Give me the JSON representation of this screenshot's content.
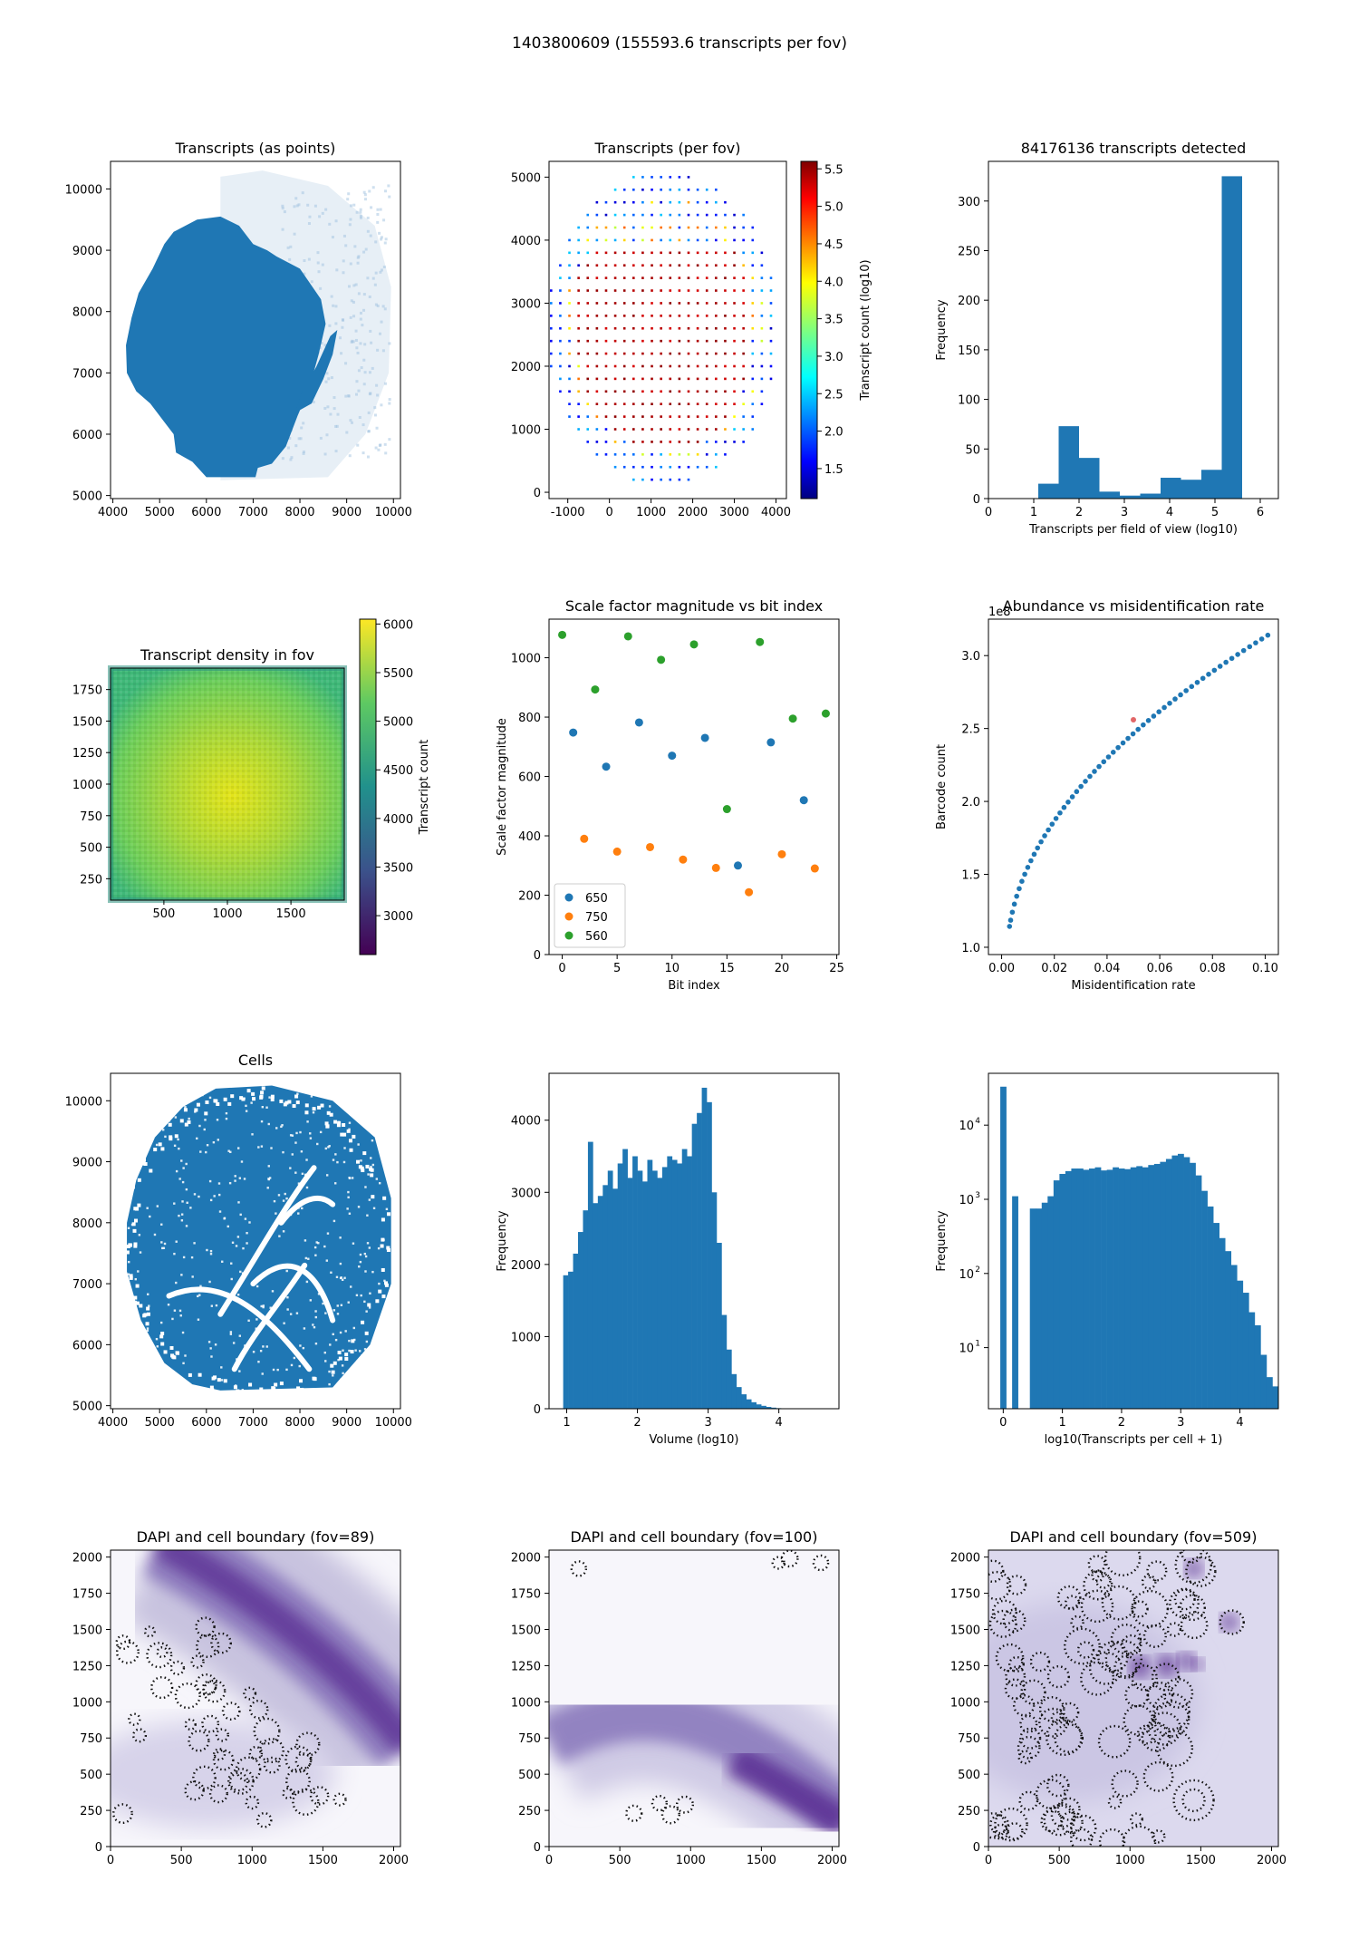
{
  "figure": {
    "title": "1403800609 (155593.6 transcripts per fov)"
  },
  "colors": {
    "c650": "#1f77b4",
    "c750": "#ff7f0e",
    "c560": "#2ca02c",
    "purple": "#54278f"
  },
  "chart_data": [
    {
      "id": "p1",
      "type": "scatter",
      "title": "Transcripts (as points)",
      "xlabel": "",
      "ylabel": "",
      "xlim": [
        3950,
        10150
      ],
      "ylim": [
        4950,
        10450
      ],
      "xticks": [
        4000,
        5000,
        6000,
        7000,
        8000,
        9000,
        10000
      ],
      "yticks": [
        5000,
        6000,
        7000,
        8000,
        9000,
        10000
      ],
      "tissue_outline": [
        [
          6000,
          5300
        ],
        [
          7050,
          5300
        ],
        [
          7100,
          5450
        ],
        [
          7400,
          5520
        ],
        [
          7700,
          5800
        ],
        [
          7950,
          6300
        ],
        [
          8200,
          6750
        ],
        [
          8400,
          7300
        ],
        [
          8550,
          7800
        ],
        [
          8450,
          8200
        ],
        [
          8000,
          8700
        ],
        [
          7500,
          8900
        ],
        [
          7300,
          9000
        ],
        [
          7000,
          9100
        ],
        [
          6700,
          9400
        ],
        [
          6300,
          9550
        ],
        [
          5800,
          9500
        ],
        [
          5300,
          9300
        ],
        [
          5100,
          9100
        ],
        [
          4850,
          8700
        ],
        [
          4550,
          8300
        ],
        [
          4400,
          7900
        ],
        [
          4280,
          7450
        ],
        [
          4300,
          7000
        ],
        [
          4500,
          6700
        ],
        [
          4800,
          6500
        ],
        [
          5100,
          6200
        ],
        [
          5300,
          6000
        ],
        [
          5350,
          5700
        ],
        [
          5700,
          5550
        ]
      ],
      "tissue_strip": [
        [
          7900,
          6350
        ],
        [
          8250,
          6500
        ],
        [
          8500,
          6900
        ],
        [
          8700,
          7300
        ],
        [
          8800,
          7700
        ],
        [
          8650,
          7600
        ],
        [
          8350,
          7100
        ],
        [
          8050,
          6700
        ]
      ],
      "faint_region": [
        [
          6300,
          5250
        ],
        [
          8600,
          5300
        ],
        [
          9400,
          6000
        ],
        [
          9900,
          7000
        ],
        [
          9950,
          8400
        ],
        [
          9600,
          9400
        ],
        [
          8600,
          10050
        ],
        [
          7200,
          10300
        ],
        [
          6300,
          10200
        ]
      ]
    },
    {
      "id": "p2",
      "type": "scatter",
      "title": "Transcripts (per fov)",
      "xlabel": "",
      "ylabel": "",
      "xlim": [
        -1450,
        4250
      ],
      "ylim": [
        -100,
        5250
      ],
      "xticks": [
        -1000,
        0,
        1000,
        2000,
        3000,
        4000
      ],
      "yticks": [
        0,
        1000,
        2000,
        3000,
        4000,
        5000
      ],
      "colorbar": {
        "label": "Transcript count (log10)",
        "min": 1.1,
        "max": 5.6,
        "ticks": [
          1.5,
          2.0,
          2.5,
          3.0,
          3.5,
          4.0,
          4.5,
          5.0,
          5.5
        ]
      },
      "grid": {
        "xmin": -1400,
        "xmax": 4000,
        "dx": 220,
        "ymin": 200,
        "ymax": 5000,
        "dy": 200,
        "cx": 1300,
        "cy": 2600,
        "rx": 2800,
        "ry": 2500
      }
    },
    {
      "id": "p3",
      "type": "bar",
      "title": "84176136 transcripts detected",
      "xlabel": "Transcripts per field of view (log10)",
      "ylabel": "Frequency",
      "xlim": [
        0,
        6.4
      ],
      "ylim": [
        0,
        340
      ],
      "xticks": [
        0,
        1,
        2,
        3,
        4,
        5,
        6
      ],
      "yticks": [
        0,
        50,
        100,
        150,
        200,
        250,
        300
      ],
      "bin_edges": [
        1.1,
        1.55,
        2.0,
        2.45,
        2.9,
        3.35,
        3.8,
        4.25,
        4.7,
        5.15,
        5.6
      ],
      "values": [
        15,
        73,
        41,
        7,
        3,
        5,
        21,
        19,
        29,
        325
      ]
    },
    {
      "id": "p4",
      "type": "heatmap",
      "title": "Transcript density in fov",
      "xlabel": "",
      "ylabel": "",
      "xlim": [
        80,
        1920
      ],
      "ylim": [
        80,
        1920
      ],
      "xticks": [
        500,
        1000,
        1500
      ],
      "yticks": [
        250,
        500,
        750,
        1000,
        1250,
        1500,
        1750
      ],
      "colorbar": {
        "label": "Transcript count",
        "min": 2600,
        "max": 6050,
        "ticks": [
          3000,
          3500,
          4000,
          4500,
          5000,
          5500,
          6000
        ]
      }
    },
    {
      "id": "p5",
      "type": "scatter",
      "title": "Scale factor magnitude vs bit index",
      "xlabel": "Bit index",
      "ylabel": "Scale factor magnitude",
      "xlim": [
        -1.2,
        25.2
      ],
      "ylim": [
        0,
        1130
      ],
      "xticks": [
        0,
        5,
        10,
        15,
        20,
        25
      ],
      "yticks": [
        0,
        200,
        400,
        600,
        800,
        1000
      ],
      "legend_position": "lower-left",
      "series": [
        {
          "name": "650",
          "color": "#1f77b4",
          "x": [
            1,
            4,
            7,
            10,
            13,
            16,
            19,
            22
          ],
          "y": [
            748,
            633,
            782,
            670,
            730,
            300,
            715,
            520
          ]
        },
        {
          "name": "750",
          "color": "#ff7f0e",
          "x": [
            2,
            5,
            8,
            11,
            14,
            17,
            20,
            23
          ],
          "y": [
            390,
            347,
            362,
            320,
            292,
            210,
            338,
            290
          ]
        },
        {
          "name": "560",
          "color": "#2ca02c",
          "x": [
            0,
            3,
            6,
            9,
            12,
            15,
            18,
            21,
            24
          ],
          "y": [
            1077,
            893,
            1072,
            993,
            1045,
            490,
            1053,
            795,
            812
          ]
        }
      ]
    },
    {
      "id": "p6",
      "type": "scatter",
      "title": "Abundance vs misidentification rate",
      "xlabel": "Misidentification rate",
      "ylabel": "Barcode count",
      "offset_label": "1e8",
      "xlim": [
        -0.005,
        0.105
      ],
      "ylim": [
        95000000.0,
        325000000.0
      ],
      "xticks": [
        0.0,
        0.02,
        0.04,
        0.06,
        0.08,
        0.1
      ],
      "yticks": [
        1.0,
        1.5,
        2.0,
        2.5,
        3.0
      ],
      "curve": {
        "x0": 0.003,
        "x1": 0.101,
        "n": 58
      },
      "highlight": {
        "x": 0.05,
        "y": 2.56
      }
    },
    {
      "id": "p7",
      "type": "scatter",
      "title": "Cells",
      "xlabel": "",
      "ylabel": "",
      "xlim": [
        3950,
        10150
      ],
      "ylim": [
        4950,
        10450
      ],
      "xticks": [
        4000,
        5000,
        6000,
        7000,
        8000,
        9000,
        10000
      ],
      "yticks": [
        5000,
        6000,
        7000,
        8000,
        9000,
        10000
      ],
      "outline": [
        [
          6300,
          5250
        ],
        [
          8700,
          5300
        ],
        [
          9500,
          6000
        ],
        [
          9950,
          7000
        ],
        [
          9950,
          8400
        ],
        [
          9600,
          9400
        ],
        [
          8700,
          10000
        ],
        [
          7400,
          10250
        ],
        [
          6200,
          10200
        ],
        [
          5500,
          9900
        ],
        [
          4900,
          9400
        ],
        [
          4500,
          8700
        ],
        [
          4300,
          8000
        ],
        [
          4300,
          7200
        ],
        [
          4600,
          6400
        ],
        [
          5100,
          5700
        ],
        [
          5700,
          5350
        ]
      ]
    },
    {
      "id": "p8",
      "type": "bar",
      "title": "",
      "xlabel": "Volume (log10)",
      "ylabel": "Frequency",
      "xlim": [
        0.75,
        4.85
      ],
      "ylim": [
        0,
        4650
      ],
      "xticks": [
        1,
        2,
        3,
        4
      ],
      "yticks": [
        0,
        1000,
        2000,
        3000,
        4000
      ],
      "bin_start": 0.95,
      "bin_width": 0.07,
      "values": [
        1850,
        1900,
        2150,
        2450,
        2750,
        3700,
        2850,
        2950,
        3100,
        3300,
        3050,
        3400,
        3600,
        3200,
        3500,
        3300,
        3150,
        3450,
        3300,
        3200,
        3350,
        3500,
        3450,
        3400,
        3600,
        3500,
        3950,
        4100,
        4450,
        4250,
        3000,
        2300,
        1300,
        820,
        480,
        300,
        200,
        130,
        90,
        60,
        40,
        25,
        15,
        8,
        5
      ]
    },
    {
      "id": "p9",
      "type": "bar",
      "title": "",
      "xlabel": "log10(Transcripts per cell + 1)",
      "ylabel": "Frequency",
      "yscale": "log",
      "xlim": [
        -0.25,
        4.65
      ],
      "ylim": [
        1.5,
        50000
      ],
      "xticks": [
        0,
        1,
        2,
        3,
        4
      ],
      "ytick_labels": [
        "10",
        "10",
        "10",
        "10"
      ],
      "ytick_exps": [
        "1",
        "2",
        "3",
        "4"
      ],
      "ytick_values": [
        10,
        100,
        1000,
        10000
      ],
      "bin_start": -0.05,
      "bin_width": 0.1,
      "values": [
        33000,
        0,
        1100,
        0,
        0,
        750,
        750,
        900,
        1100,
        1800,
        2200,
        2400,
        2600,
        2600,
        2500,
        2600,
        2700,
        2450,
        2500,
        2700,
        2600,
        2550,
        2700,
        2800,
        2700,
        2900,
        3000,
        3200,
        3500,
        3900,
        4100,
        3700,
        3100,
        2100,
        1300,
        800,
        480,
        300,
        200,
        130,
        80,
        55,
        30,
        20,
        8,
        4,
        3
      ]
    },
    {
      "id": "p10",
      "type": "heatmap",
      "title": "DAPI and cell boundary (fov=89)",
      "xlabel": "",
      "ylabel": "",
      "xlim": [
        0,
        2048
      ],
      "ylim": [
        0,
        2048
      ],
      "xticks": [
        0,
        500,
        1000,
        1500,
        2000
      ],
      "yticks": [
        0,
        250,
        500,
        750,
        1000,
        1250,
        1500,
        1750,
        2000
      ]
    },
    {
      "id": "p11",
      "type": "heatmap",
      "title": "DAPI and cell boundary (fov=100)",
      "xlabel": "",
      "ylabel": "",
      "xlim": [
        0,
        2048
      ],
      "ylim": [
        0,
        2048
      ],
      "xticks": [
        0,
        500,
        1000,
        1500,
        2000
      ],
      "yticks": [
        0,
        250,
        500,
        750,
        1000,
        1250,
        1500,
        1750,
        2000
      ]
    },
    {
      "id": "p12",
      "type": "heatmap",
      "title": "DAPI and cell boundary (fov=509)",
      "xlabel": "",
      "ylabel": "",
      "xlim": [
        0,
        2048
      ],
      "ylim": [
        0,
        2048
      ],
      "xticks": [
        0,
        500,
        1000,
        1500,
        2000
      ],
      "yticks": [
        0,
        250,
        500,
        750,
        1000,
        1250,
        1500,
        1750,
        2000
      ]
    }
  ]
}
